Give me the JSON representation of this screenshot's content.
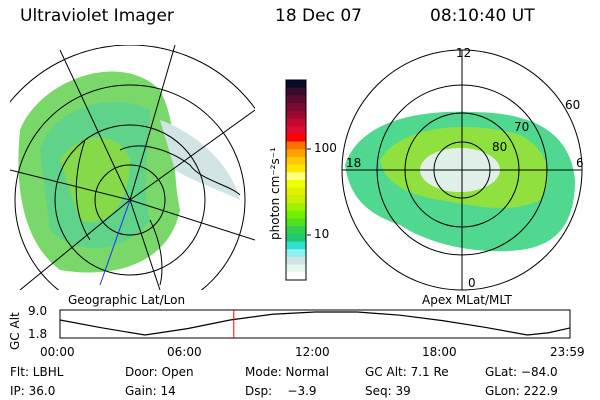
{
  "header": {
    "instrument": "Ultraviolet Imager",
    "date": "18 Dec 07",
    "time": "08:10:40 UT"
  },
  "left_panel": {
    "label": "Geographic Lat/Lon"
  },
  "right_panel": {
    "label": "Apex MLat/MLT",
    "mlt_labels": [
      "12",
      "18",
      "6",
      "0"
    ],
    "mlat_labels": [
      "60",
      "70",
      "80"
    ]
  },
  "colorbar": {
    "unit_label": "photon cm⁻²s⁻¹",
    "tick_labels": [
      "100",
      "10"
    ],
    "colors": [
      "#0a0a2a",
      "#3a0a2a",
      "#5a0a30",
      "#7a0a30",
      "#9a0a30",
      "#c00a30",
      "#e00a30",
      "#ff0000",
      "#ff7000",
      "#ffa000",
      "#ffc800",
      "#ffe600",
      "#ffff80",
      "#f0ff00",
      "#e0f000",
      "#c8f000",
      "#a0f000",
      "#70f000",
      "#50e020",
      "#30d050",
      "#20c870",
      "#30e0d0",
      "#90f0f0",
      "#d0e4e4",
      "#e8f4ee",
      "#ffffff"
    ]
  },
  "timeline": {
    "axis_label": "GC Alt",
    "y_ticks": [
      "9.0",
      "1.8"
    ],
    "x_ticks": [
      "00:00",
      "06:00",
      "12:00",
      "18:00",
      "23:59"
    ],
    "marker_time": "08:10:40",
    "marker_color": "#ff0000",
    "chart_data": {
      "type": "line",
      "x": [
        0,
        2,
        4,
        6,
        8,
        10,
        12,
        14,
        16,
        18,
        20,
        22,
        23,
        24
      ],
      "y": [
        6.5,
        4,
        1.8,
        3.8,
        6.5,
        8.3,
        9,
        9,
        8,
        6.3,
        4.2,
        1.8,
        2.5,
        4
      ],
      "ylim": [
        1.8,
        9.0
      ],
      "xlim": [
        0,
        24
      ]
    }
  },
  "status": {
    "row1": [
      "Flt: LBHL",
      "Door: Open",
      "Mode: Normal",
      "GC Alt: 7.1 Re",
      "GLat: −84.0"
    ],
    "row2": [
      "IP: 36.0",
      "Gain: 14",
      "Dsp:    −3.9",
      "Seq: 39",
      "GLon: 222.9"
    ]
  }
}
